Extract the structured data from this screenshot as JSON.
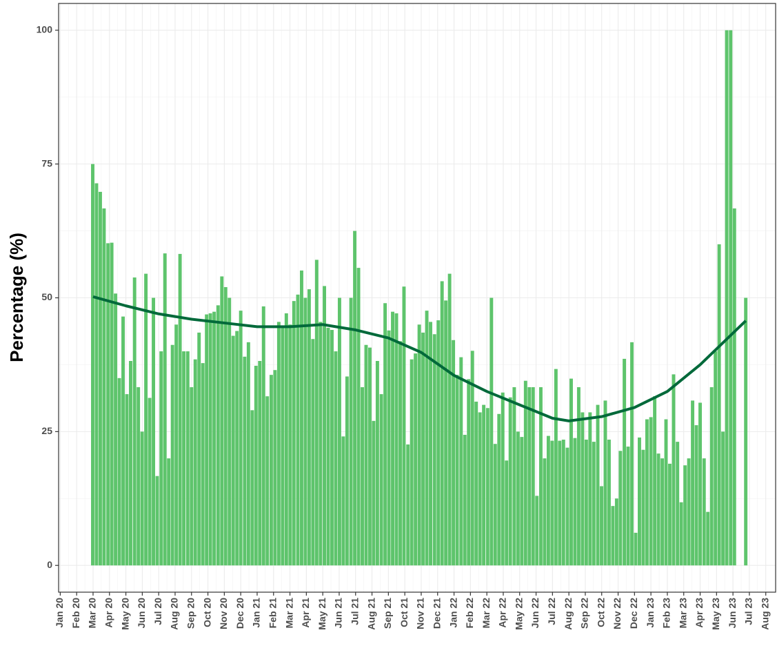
{
  "chart_data": {
    "type": "bar",
    "y_label": "Percentage (%)",
    "xlim": [
      -0.1,
      43.6
    ],
    "ylim": [
      -5,
      105
    ],
    "xticks": [
      {
        "value": 0,
        "label": "Jan 20"
      },
      {
        "value": 1,
        "label": "Feb 20"
      },
      {
        "value": 2,
        "label": "Mar 20"
      },
      {
        "value": 3,
        "label": "Apr 20"
      },
      {
        "value": 4,
        "label": "May 20"
      },
      {
        "value": 5,
        "label": "Jun 20"
      },
      {
        "value": 6,
        "label": "Jul 20"
      },
      {
        "value": 7,
        "label": "Aug 20"
      },
      {
        "value": 8,
        "label": "Sep 20"
      },
      {
        "value": 9,
        "label": "Oct 20"
      },
      {
        "value": 10,
        "label": "Nov 20"
      },
      {
        "value": 11,
        "label": "Dec 20"
      },
      {
        "value": 12,
        "label": "Jan 21"
      },
      {
        "value": 13,
        "label": "Feb 21"
      },
      {
        "value": 14,
        "label": "Mar 21"
      },
      {
        "value": 15,
        "label": "Apr 21"
      },
      {
        "value": 16,
        "label": "May 21"
      },
      {
        "value": 17,
        "label": "Jun 21"
      },
      {
        "value": 18,
        "label": "Jul 21"
      },
      {
        "value": 19,
        "label": "Aug 21"
      },
      {
        "value": 20,
        "label": "Sep 21"
      },
      {
        "value": 21,
        "label": "Oct 21"
      },
      {
        "value": 22,
        "label": "Nov 21"
      },
      {
        "value": 23,
        "label": "Dec 21"
      },
      {
        "value": 24,
        "label": "Jan 22"
      },
      {
        "value": 25,
        "label": "Feb 22"
      },
      {
        "value": 26,
        "label": "Mar 22"
      },
      {
        "value": 27,
        "label": "Apr 22"
      },
      {
        "value": 28,
        "label": "May 22"
      },
      {
        "value": 29,
        "label": "Jun 22"
      },
      {
        "value": 30,
        "label": "Jul 22"
      },
      {
        "value": 31,
        "label": "Aug 22"
      },
      {
        "value": 32,
        "label": "Sep 22"
      },
      {
        "value": 33,
        "label": "Oct 22"
      },
      {
        "value": 34,
        "label": "Nov 22"
      },
      {
        "value": 35,
        "label": "Dec 22"
      },
      {
        "value": 36,
        "label": "Jan 23"
      },
      {
        "value": 37,
        "label": "Feb 23"
      },
      {
        "value": 38,
        "label": "Mar 23"
      },
      {
        "value": 39,
        "label": "Apr 23"
      },
      {
        "value": 40,
        "label": "May 23"
      },
      {
        "value": 41,
        "label": "Jun 23"
      },
      {
        "value": 42,
        "label": "Jul 23"
      },
      {
        "value": 43,
        "label": "Aug 23"
      }
    ],
    "yticks": [
      0,
      25,
      50,
      75,
      100
    ],
    "grid": true,
    "series": [
      {
        "type": "bar",
        "color": "#5ec46c",
        "x": [
          1.98,
          2.21,
          2.44,
          2.67,
          2.91,
          3.14,
          3.37,
          3.6,
          3.83,
          4.06,
          4.29,
          4.53,
          4.76,
          4.99,
          5.22,
          5.45,
          5.68,
          5.91,
          6.15,
          6.38,
          6.61,
          6.84,
          7.07,
          7.3,
          7.53,
          7.77,
          8.0,
          8.23,
          8.46,
          8.69,
          8.92,
          9.15,
          9.38,
          9.62,
          9.85,
          10.08,
          10.31,
          10.54,
          10.77,
          11.0,
          11.24,
          11.47,
          11.7,
          11.93,
          12.16,
          12.39,
          12.62,
          12.86,
          13.09,
          13.32,
          13.55,
          13.78,
          14.01,
          14.24,
          14.48,
          14.71,
          14.94,
          15.17,
          15.4,
          15.63,
          15.86,
          16.1,
          16.33,
          16.56,
          16.79,
          17.02,
          17.25,
          17.48,
          17.72,
          17.95,
          18.18,
          18.41,
          18.64,
          18.87,
          19.1,
          19.33,
          19.57,
          19.8,
          20.03,
          20.26,
          20.49,
          20.72,
          20.95,
          21.19,
          21.42,
          21.65,
          21.88,
          22.11,
          22.34,
          22.57,
          22.81,
          23.04,
          23.27,
          23.5,
          23.73,
          23.96,
          24.19,
          24.43,
          24.66,
          24.89,
          25.12,
          25.35,
          25.58,
          25.81,
          26.05,
          26.28,
          26.51,
          26.74,
          26.97,
          27.2,
          27.43,
          27.67,
          27.9,
          28.13,
          28.36,
          28.59,
          28.82,
          29.05,
          29.29,
          29.52,
          29.75,
          29.98,
          30.21,
          30.44,
          30.67,
          30.91,
          31.14,
          31.37,
          31.6,
          31.83,
          32.06,
          32.29,
          32.52,
          32.76,
          32.99,
          33.22,
          33.45,
          33.68,
          33.91,
          34.14,
          34.38,
          34.61,
          34.84,
          35.07,
          35.3,
          35.53,
          35.76,
          36.0,
          36.23,
          36.46,
          36.69,
          36.92,
          37.15,
          37.38,
          37.62,
          37.85,
          38.08,
          38.31,
          38.54,
          38.77,
          39.0,
          39.24,
          39.47,
          39.7,
          39.93,
          40.16,
          40.39,
          40.62,
          40.86,
          41.09,
          41.32,
          41.55,
          41.78
        ],
        "values": [
          75,
          71.4,
          69.8,
          66.7,
          60.2,
          60.3,
          50.8,
          35,
          46.5,
          32,
          38.2,
          53.8,
          33.3,
          25,
          54.5,
          31.3,
          50,
          16.7,
          40,
          58.3,
          20,
          41.2,
          45,
          58.2,
          40,
          40,
          33.3,
          38.5,
          43.5,
          37.8,
          46.9,
          47.1,
          47.4,
          48.6,
          54,
          52,
          50,
          42.9,
          43.8,
          47.6,
          39,
          41.7,
          29,
          37.3,
          38.2,
          48.4,
          31.6,
          35.6,
          36.5,
          45.5,
          44.4,
          47.1,
          45,
          49.4,
          50.6,
          55.1,
          50,
          51.6,
          42.3,
          57.1,
          45.5,
          52.2,
          44.4,
          44,
          40,
          50,
          24.1,
          35.3,
          50,
          62.5,
          55.6,
          33.3,
          41.2,
          40.7,
          27,
          38.2,
          32,
          49,
          43.9,
          47.4,
          47.1,
          41.9,
          52.1,
          22.6,
          38.5,
          39.6,
          45,
          43.5,
          47.6,
          45.5,
          43.2,
          45.8,
          53.1,
          49.5,
          54.5,
          42.1,
          35.6,
          38.9,
          24.4,
          34.8,
          40.1,
          30.6,
          28.6,
          30,
          29.4,
          50,
          22.7,
          28.3,
          32.3,
          19.6,
          31.4,
          33.3,
          25,
          24,
          34.5,
          33.3,
          33.3,
          13,
          33.3,
          20,
          24.2,
          23.3,
          36.7,
          23.3,
          23.5,
          22,
          34.9,
          23.8,
          33.3,
          28.6,
          23.5,
          28.6,
          23.1,
          30,
          14.8,
          30.8,
          23.5,
          11.1,
          12.5,
          21.4,
          38.6,
          22.2,
          41.7,
          6.1,
          23.9,
          21.6,
          27.3,
          27.7,
          31.6,
          20.9,
          20,
          27.3,
          19,
          35.7,
          23.1,
          11.8,
          18.7,
          20,
          30.8,
          26.2,
          30.4,
          20,
          10,
          33.3,
          40,
          60,
          25,
          100,
          100,
          66.7,
          null,
          null,
          50
        ]
      },
      {
        "type": "line",
        "color": "#00693a",
        "x": [
          2,
          4,
          6,
          8,
          10,
          12,
          14,
          16,
          18,
          20,
          22,
          24,
          26,
          28,
          30,
          31,
          33,
          35,
          37,
          39,
          41.78
        ],
        "values": [
          50.2,
          48.5,
          47,
          46,
          45.3,
          44.6,
          44.6,
          45,
          44,
          42.5,
          39.8,
          35.5,
          32.5,
          30,
          27.5,
          27,
          27.8,
          29.5,
          32.5,
          37.5,
          45.7
        ]
      }
    ]
  }
}
